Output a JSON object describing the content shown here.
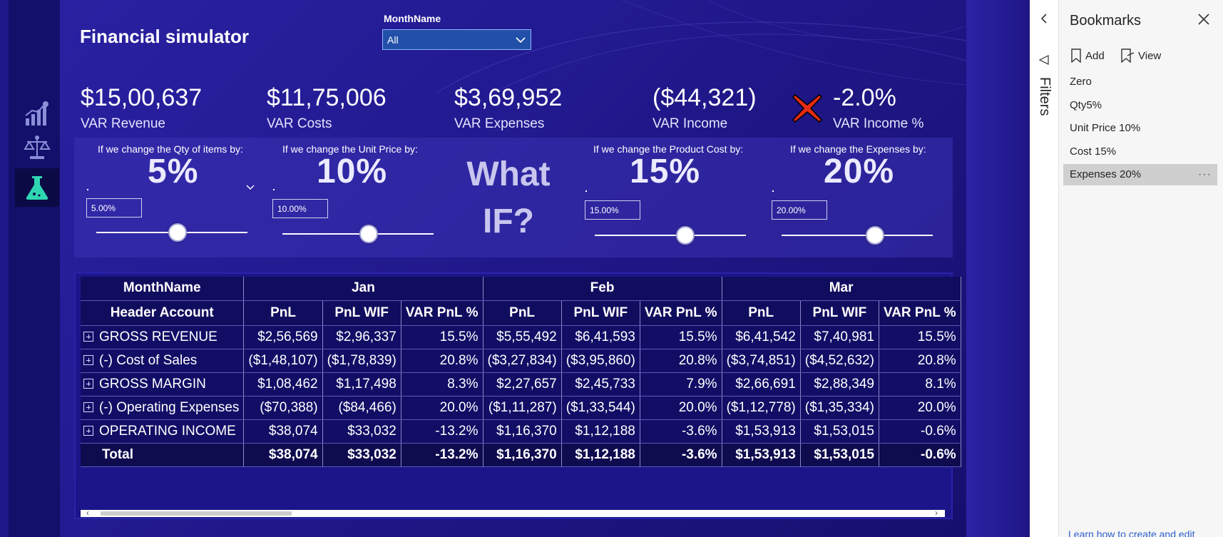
{
  "report": {
    "title": "Financial simulator",
    "slicer": {
      "label": "MonthName",
      "value": "All"
    },
    "nav": {
      "items": [
        "chart-icon",
        "scales-icon",
        "flask-icon"
      ],
      "active": 2
    },
    "kpis": [
      {
        "value": "$15,00,637",
        "label": "VAR Revenue"
      },
      {
        "value": "$11,75,006",
        "label": "VAR Costs"
      },
      {
        "value": "$3,69,952",
        "label": "VAR Expenses"
      },
      {
        "value": "($44,321)",
        "label": "VAR Income"
      },
      {
        "value": "-2.0%",
        "label": "VAR Income %",
        "status_icon": "red-x-icon"
      }
    ],
    "whatif": {
      "text_top": "What",
      "text_bottom": "IF?",
      "params": [
        {
          "caption": "If we change the Qty of items by:",
          "big": "5%",
          "input": "5.00%",
          "slider_position": 0.54
        },
        {
          "caption": "If we change the Unit Price by:",
          "big": "10%",
          "input": "10.00%",
          "slider_position": 0.57
        },
        {
          "caption": "If we change the Product Cost by:",
          "big": "15%",
          "input": "15.00%",
          "slider_position": 0.6
        },
        {
          "caption": "If we change the Expenses by:",
          "big": "20%",
          "input": "20.00%",
          "slider_position": 0.62
        }
      ]
    },
    "matrix": {
      "row_header_1": "MonthName",
      "row_header_2": "Header Account",
      "months": [
        "Jan",
        "Feb",
        "Mar"
      ],
      "subcolumns": [
        "PnL",
        "PnL WIF",
        "VAR PnL %"
      ],
      "rows": [
        {
          "label": "GROSS REVENUE",
          "cells": [
            "$2,56,569",
            "$2,96,337",
            "15.5%",
            "$5,55,492",
            "$6,41,593",
            "15.5%",
            "$6,41,542",
            "$7,40,981",
            "15.5%"
          ]
        },
        {
          "label": "(-) Cost of Sales",
          "cells": [
            "($1,48,107)",
            "($1,78,839)",
            "20.8%",
            "($3,27,834)",
            "($3,95,860)",
            "20.8%",
            "($3,74,851)",
            "($4,52,632)",
            "20.8%"
          ]
        },
        {
          "label": "GROSS MARGIN",
          "cells": [
            "$1,08,462",
            "$1,17,498",
            "8.3%",
            "$2,27,657",
            "$2,45,733",
            "7.9%",
            "$2,66,691",
            "$2,88,349",
            "8.1%"
          ]
        },
        {
          "label": "(-) Operating Expenses",
          "cells": [
            "($70,388)",
            "($84,466)",
            "20.0%",
            "($1,11,287)",
            "($1,33,544)",
            "20.0%",
            "($1,12,778)",
            "($1,35,334)",
            "20.0%"
          ]
        },
        {
          "label": "OPERATING INCOME",
          "cells": [
            "$38,074",
            "$33,032",
            "-13.2%",
            "$1,16,370",
            "$1,12,188",
            "-3.6%",
            "$1,53,913",
            "$1,53,015",
            "-0.6%"
          ]
        }
      ],
      "total": {
        "label": "Total",
        "cells": [
          "$38,074",
          "$33,032",
          "-13.2%",
          "$1,16,370",
          "$1,12,188",
          "-3.6%",
          "$1,53,913",
          "$1,53,015",
          "-0.6%"
        ]
      }
    }
  },
  "filters": {
    "label": "Filters"
  },
  "bookmarks": {
    "title": "Bookmarks",
    "add_label": "Add",
    "view_label": "View",
    "items": [
      "Zero",
      "Qty5%",
      "Unit Price 10%",
      "Cost 15%",
      "Expenses 20%"
    ],
    "selected_index": 4,
    "more": "···",
    "learn_link": "Learn how to create and edit"
  },
  "colors": {
    "canvas": "#1d1787",
    "nav": "#13106b",
    "matrix_cell": "#120e66",
    "accent_teal": "#2fd6b2",
    "status_red": "#e52c14",
    "pane": "#f6f6f6"
  }
}
